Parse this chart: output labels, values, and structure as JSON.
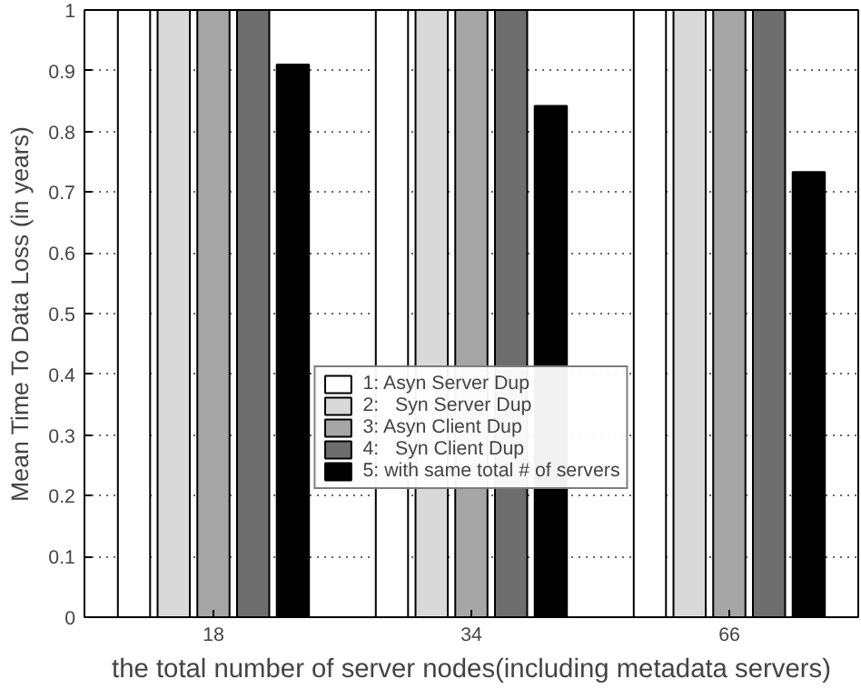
{
  "chart_data": {
    "type": "bar",
    "xlabel": "the total number of server nodes(including metadata servers)",
    "ylabel": "Mean Time To Data Loss (in years)",
    "categories": [
      "18",
      "34",
      "66"
    ],
    "series": [
      {
        "name": "1: Asyn Server Dup",
        "color": "#ffffff",
        "values": [
          1,
          1,
          1
        ]
      },
      {
        "name": "2:   Syn Server Dup",
        "color": "#d9d9d9",
        "values": [
          1,
          1,
          1
        ]
      },
      {
        "name": "3: Asyn Client Dup",
        "color": "#a6a6a6",
        "values": [
          1,
          1,
          1
        ]
      },
      {
        "name": "4:   Syn Client Dup",
        "color": "#6e6e6e",
        "values": [
          1,
          1,
          1
        ]
      },
      {
        "name": "5: with same total # of servers",
        "color": "#000000",
        "values": [
          0.91,
          0.842,
          0.733
        ]
      }
    ],
    "ylim": [
      0,
      1
    ],
    "yticks": [
      0,
      0.1,
      0.2,
      0.3,
      0.4,
      0.5,
      0.6,
      0.7,
      0.8,
      0.9,
      1
    ],
    "grid": "y",
    "legend": "bottom"
  }
}
